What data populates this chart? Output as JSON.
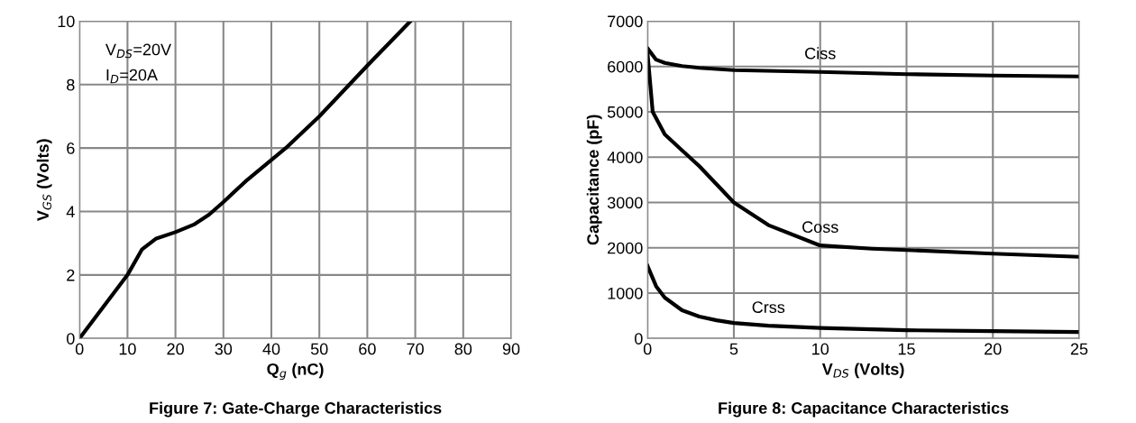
{
  "chart_data": [
    {
      "type": "line",
      "title": "Figure 7: Gate-Charge Characteristics",
      "xlabel": "Q$_{g}$ (nC)",
      "ylabel": "V$_{GS}$ (Volts)",
      "annotations": [
        "V$_{DS}$=20V",
        "I$_{D}$=20A"
      ],
      "xlim": [
        0,
        90
      ],
      "xticks": [
        0,
        10,
        20,
        30,
        40,
        50,
        60,
        70,
        80,
        90
      ],
      "ylim": [
        0,
        10
      ],
      "yticks": [
        0,
        2,
        4,
        6,
        8,
        10
      ],
      "grid": true,
      "legend": false,
      "series": [
        {
          "color": "#000000",
          "x": [
            0,
            10,
            13,
            16,
            20,
            24,
            27,
            30,
            35,
            43,
            50,
            60,
            69
          ],
          "values": [
            0,
            2,
            2.8,
            3.15,
            3.35,
            3.6,
            3.9,
            4.3,
            5.0,
            6.0,
            7.0,
            8.6,
            10
          ]
        }
      ]
    },
    {
      "type": "line",
      "title": "Figure 8: Capacitance Characteristics",
      "xlabel": "V$_{DS}$ (Volts)",
      "ylabel": "Capacitance (pF)",
      "xlim": [
        0,
        25
      ],
      "xticks": [
        0,
        5,
        10,
        15,
        20,
        25
      ],
      "ylim": [
        0,
        7000
      ],
      "yticks": [
        0,
        1000,
        2000,
        3000,
        4000,
        5000,
        6000,
        7000
      ],
      "grid": true,
      "legend": false,
      "series": [
        {
          "name": "Ciss",
          "color": "#000000",
          "x": [
            0,
            0.5,
            1,
            2,
            3,
            5,
            10,
            15,
            20,
            25
          ],
          "values": [
            6400,
            6150,
            6080,
            6010,
            5970,
            5920,
            5880,
            5830,
            5800,
            5780
          ]
        },
        {
          "name": "Coss",
          "color": "#000000",
          "x": [
            0,
            0.3,
            1,
            2,
            3,
            5,
            7,
            10,
            13,
            15,
            20,
            25
          ],
          "values": [
            6300,
            5000,
            4500,
            4150,
            3800,
            3000,
            2500,
            2050,
            1980,
            1950,
            1870,
            1800
          ]
        },
        {
          "name": "Crss",
          "color": "#000000",
          "x": [
            0,
            0.5,
            1,
            2,
            3,
            4,
            5,
            7,
            10,
            15,
            20,
            25
          ],
          "values": [
            1600,
            1150,
            900,
            620,
            480,
            400,
            340,
            280,
            230,
            180,
            160,
            140
          ]
        }
      ]
    }
  ]
}
